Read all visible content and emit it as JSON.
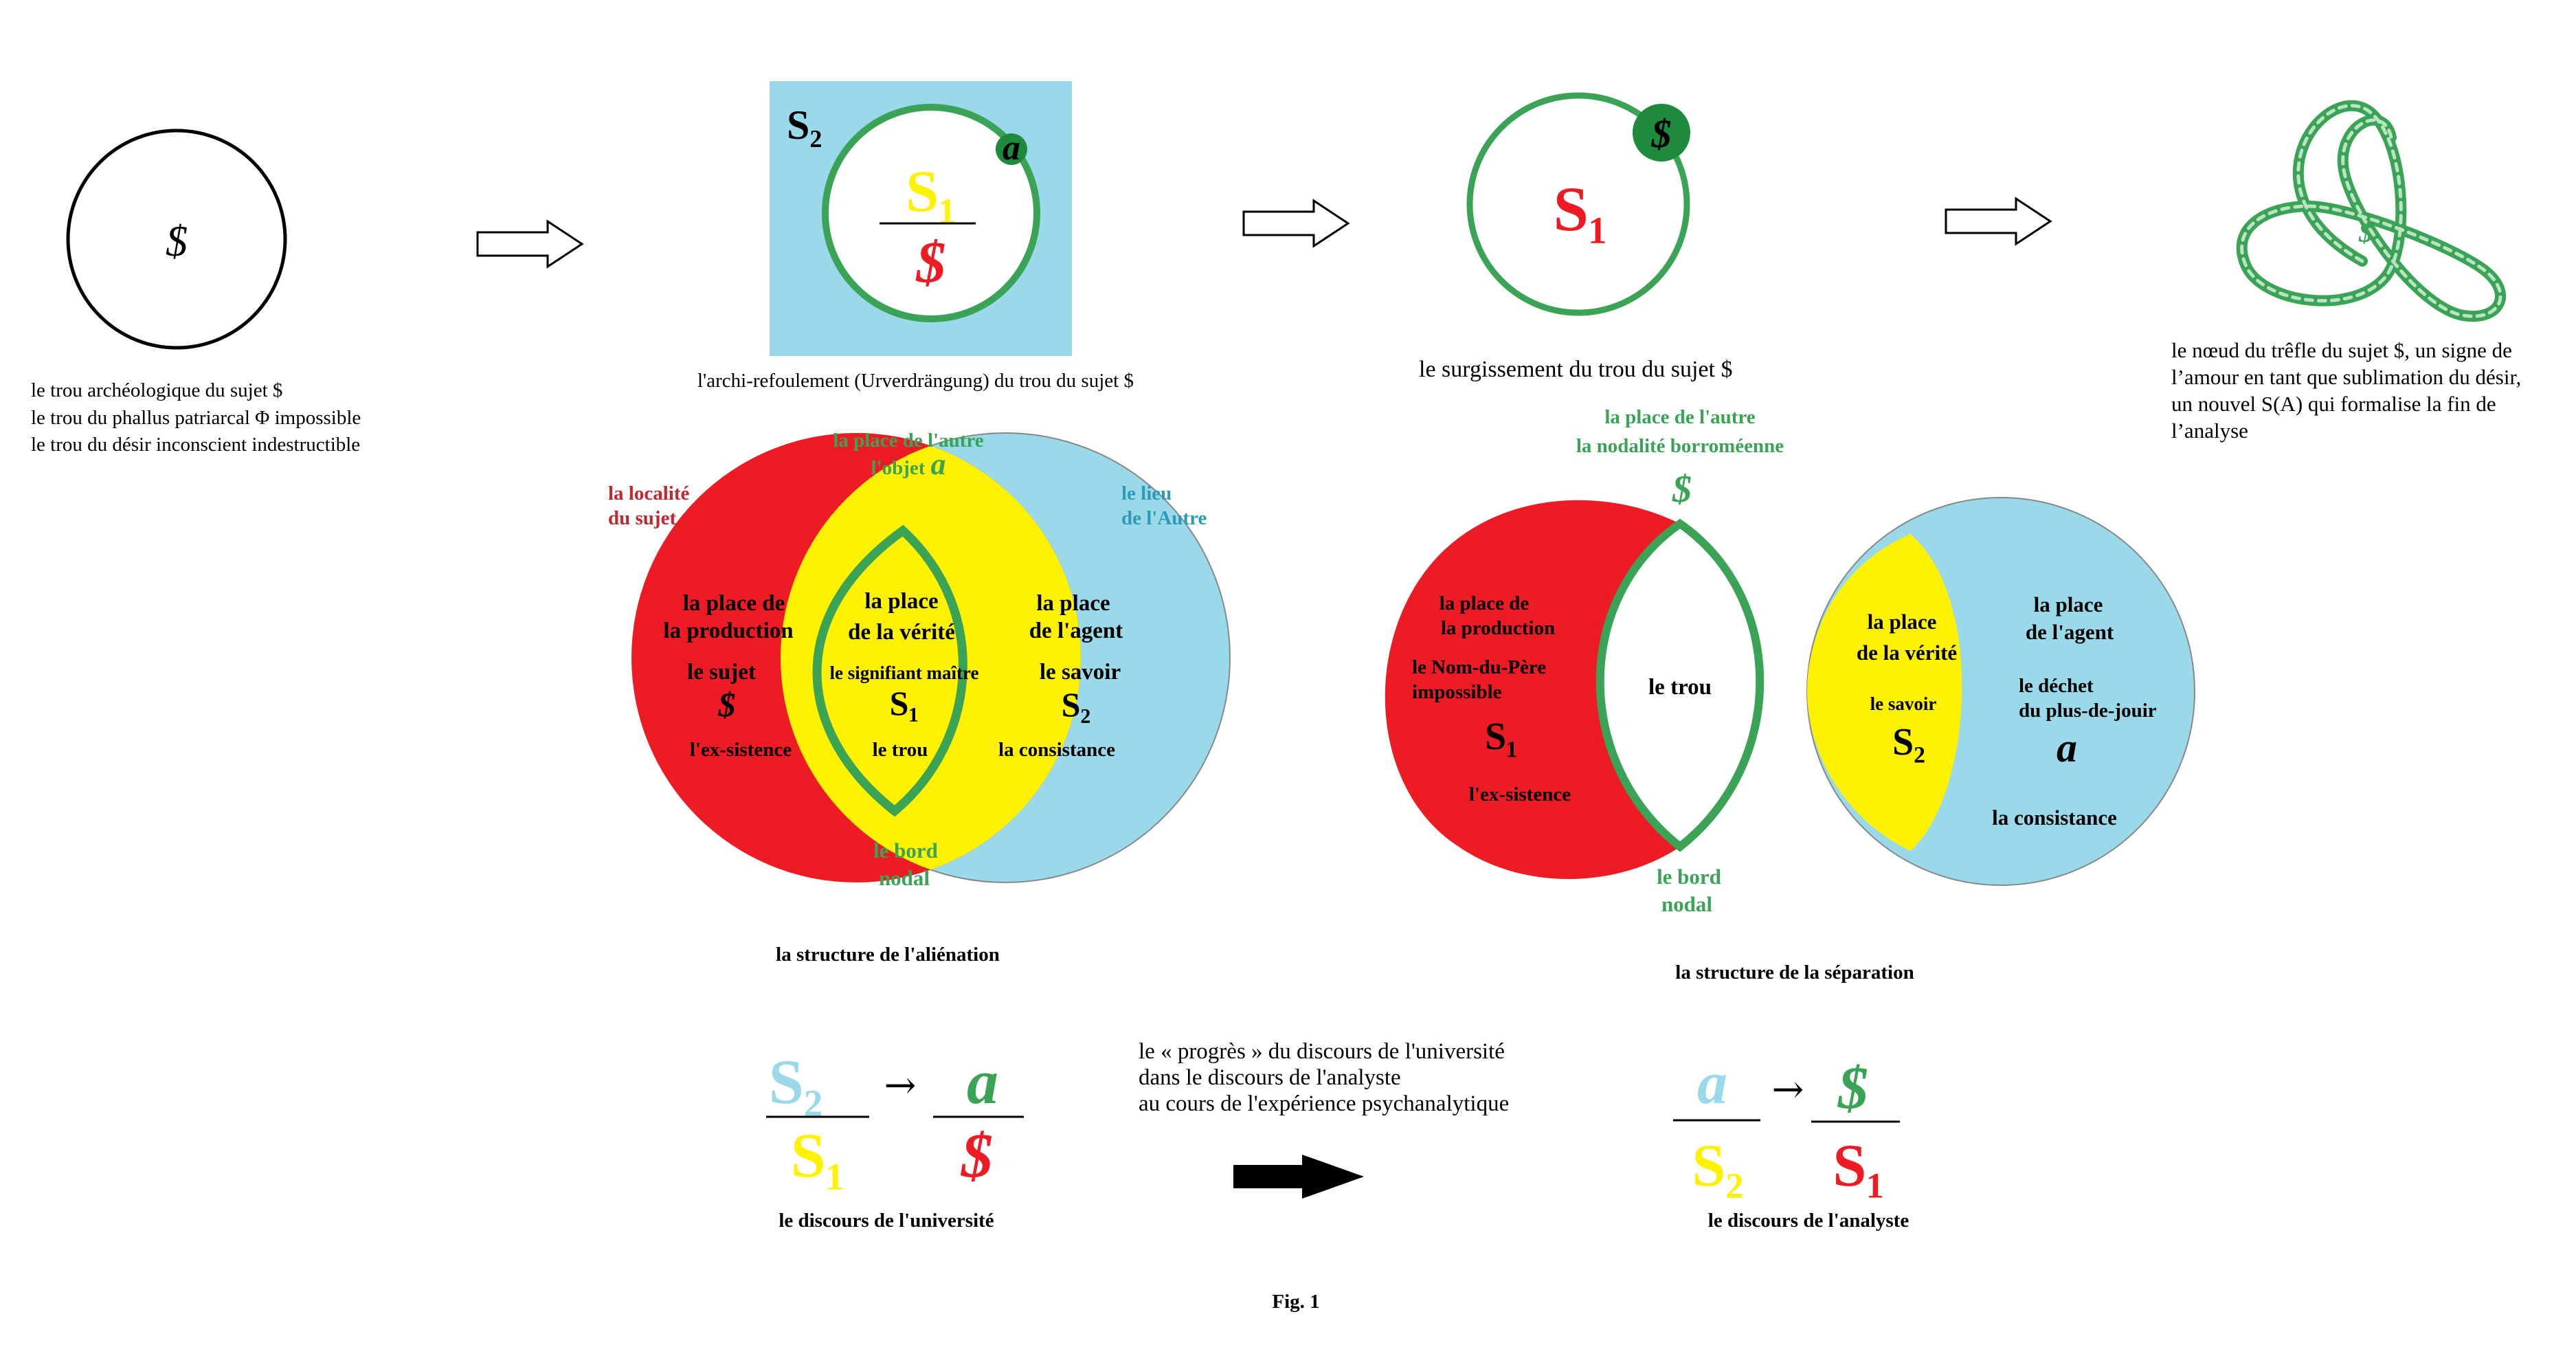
{
  "colors": {
    "red": "#ED1C24",
    "yellow": "#FFF200",
    "lightblue": "#99D9EA",
    "green": "#3AA356",
    "darkgreen": "#1E8A3C",
    "black": "#000000",
    "darkred": "#C1272D",
    "teal": "#2E9BB5"
  },
  "panel1": {
    "symbol": "$",
    "caption_lines": [
      "le trou archéologique du sujet $",
      "le trou du phallus patriarcal Φ impossible",
      "le trou du désir inconscient indestructible"
    ]
  },
  "panel2": {
    "s2_label": "S₂",
    "a_label": "a",
    "numerator": "S₁",
    "denominator": "$",
    "caption": "l'archi-refoulement (Urverdrängung)  du trou du sujet $"
  },
  "panel3": {
    "dot_label": "$",
    "center_label": "S₁",
    "caption": "le surgissement du trou du sujet $"
  },
  "panel4": {
    "knot_label": "$",
    "caption_lines": [
      "le nœud du trêfle du sujet $, un signe de",
      "l’amour en tant que sublimation du désir,",
      "un nouvel  S(A) qui formalise la fin de",
      "l’analyse"
    ]
  },
  "alienation": {
    "top_label_lines": [
      "la place de l'autre",
      "l'objet"
    ],
    "top_label_a": "a",
    "left_label_lines": [
      "la localité",
      "du sujet"
    ],
    "right_label_lines": [
      "le lieu",
      "de l'Autre"
    ],
    "left_lines": [
      "la place de",
      "la production"
    ],
    "left_sub": "le sujet",
    "left_symbol": "$",
    "left_bottom": "l'ex-sistence",
    "mid_lines": [
      "la place",
      "de la vérité"
    ],
    "mid_sub": "le signifiant maître",
    "mid_symbol": "S₁",
    "mid_bottom": "le trou",
    "right_lines": [
      "la place",
      "de l'agent"
    ],
    "right_sub": "le savoir",
    "right_symbol": "S₂",
    "right_bottom": "la consistance",
    "bord_lines": [
      "le bord",
      "nodal"
    ],
    "caption": "la structure de l'aliénation"
  },
  "separation": {
    "top_label_lines": [
      "la place de l'autre",
      "la nodalité borroméenne"
    ],
    "top_symbol": "$",
    "red_lines": [
      "la place de",
      "la production"
    ],
    "red_sub_lines": [
      "le Nom-du-Père",
      "impossible"
    ],
    "red_symbol": "S₁",
    "red_bottom": "l'ex-sistence",
    "hole_label": "le trou",
    "bord_lines": [
      "le bord",
      "nodal"
    ],
    "yellow_lines": [
      "la place",
      "de la vérité"
    ],
    "yellow_sub": "le savoir",
    "yellow_symbol": "S₂",
    "blue_lines": [
      "la place",
      "de l'agent"
    ],
    "blue_sub_lines": [
      "le déchet",
      "du plus-de-jouir"
    ],
    "blue_symbol": "a",
    "blue_bottom": "la consistance",
    "caption": "la structure de la séparation"
  },
  "university": {
    "top_left": "S₂",
    "arrow": "→",
    "top_right": "a",
    "bottom_left": "S₁",
    "bottom_right": "$",
    "caption": "le discours de l'université"
  },
  "progress": {
    "lines": [
      "le « progrès » du discours de l'université",
      "dans le discours de l'analyste",
      "au cours de l'expérience psychanalytique"
    ]
  },
  "analyst": {
    "top_left": "a",
    "arrow": "→",
    "top_right": "$",
    "bottom_left": "S₂",
    "bottom_right": "S₁",
    "caption": "le discours de l'analyste"
  },
  "figure_label": "Fig. 1"
}
